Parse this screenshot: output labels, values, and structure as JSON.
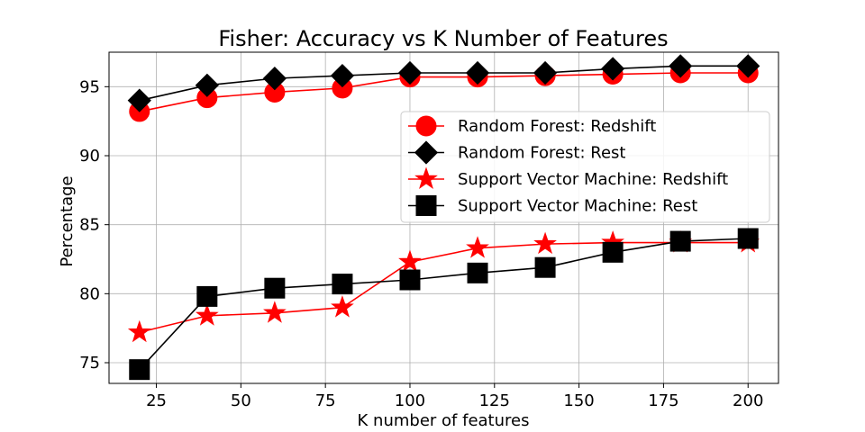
{
  "chart_data": {
    "type": "line",
    "title": "Fisher: Accuracy vs K Number of Features",
    "xlabel": "K number of features",
    "ylabel": "Percentage",
    "xlim": [
      11,
      209
    ],
    "ylim": [
      73.5,
      97.5
    ],
    "xticks": [
      25,
      50,
      75,
      100,
      125,
      150,
      175,
      200
    ],
    "yticks": [
      75,
      80,
      85,
      90,
      95
    ],
    "grid": true,
    "legend_position": "right",
    "x": [
      20,
      40,
      60,
      80,
      100,
      120,
      140,
      160,
      180,
      200
    ],
    "series": [
      {
        "name": "Random Forest: Redshift",
        "color": "#ff0000",
        "marker": "circle",
        "values": [
          93.2,
          94.2,
          94.6,
          94.9,
          95.7,
          95.7,
          95.8,
          95.9,
          96.0,
          96.0
        ]
      },
      {
        "name": "Random Forest: Rest",
        "color": "#000000",
        "marker": "diamond",
        "values": [
          94.0,
          95.1,
          95.6,
          95.8,
          96.0,
          96.0,
          96.0,
          96.3,
          96.5,
          96.5
        ]
      },
      {
        "name": "Support Vector Machine: Redshift",
        "color": "#ff0000",
        "marker": "star",
        "values": [
          77.2,
          78.4,
          78.6,
          79.0,
          82.3,
          83.3,
          83.6,
          83.7,
          83.7,
          83.7
        ]
      },
      {
        "name": "Support Vector Machine: Rest",
        "color": "#000000",
        "marker": "square",
        "values": [
          74.5,
          79.8,
          80.4,
          80.7,
          81.0,
          81.5,
          81.9,
          83.0,
          83.8,
          84.0
        ]
      }
    ]
  }
}
